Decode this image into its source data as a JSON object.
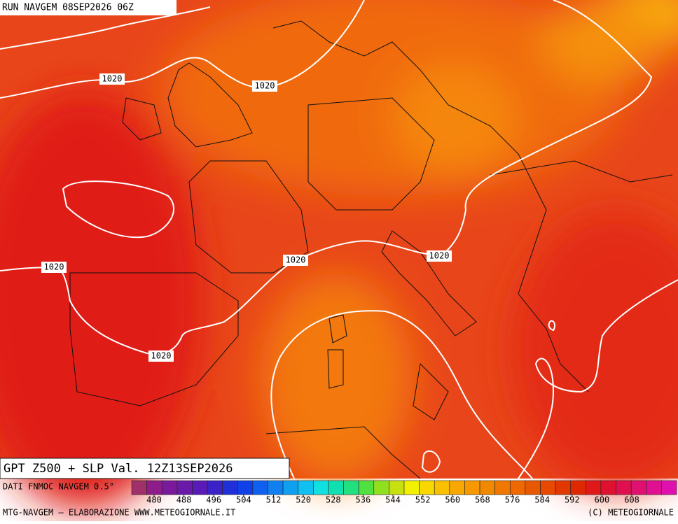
{
  "header": {
    "run": "RUN NAVGEM 08SEP2026 06Z"
  },
  "title": "GPT Z500 + SLP Val. 12Z13SEP2026",
  "isobar_labels": [
    "1020",
    "1020",
    "1020",
    "1020",
    "1020",
    "1020"
  ],
  "colorbar": {
    "source": "DATI FNMOC NAVGEM 0.5°",
    "lim": [
      474,
      620
    ],
    "ticks": [
      480,
      488,
      496,
      504,
      512,
      520,
      528,
      536,
      544,
      552,
      560,
      568,
      576,
      584,
      592,
      600,
      608
    ],
    "colors": [
      "#a0306a",
      "#8e1c8a",
      "#7a1a9a",
      "#6a1aa8",
      "#5a1ab8",
      "#3a22c8",
      "#2030d8",
      "#1040e8",
      "#1060f0",
      "#1080f0",
      "#10a0f0",
      "#10c0f0",
      "#10e0e0",
      "#10e0b0",
      "#20e080",
      "#50e040",
      "#90e020",
      "#c8e010",
      "#f0f000",
      "#f8d800",
      "#f8c000",
      "#f8a800",
      "#f89800",
      "#f08800",
      "#f07800",
      "#f06800",
      "#e85800",
      "#e84800",
      "#e03800",
      "#e02800",
      "#e01818",
      "#e01030",
      "#e01050",
      "#e01070",
      "#e01090",
      "#e010b0"
    ]
  },
  "footer": {
    "left": "MTG-NAVGEM – ELABORAZIONE WWW.METEOGIORNALE.IT",
    "right": "(C) METEOGIORNALE"
  }
}
